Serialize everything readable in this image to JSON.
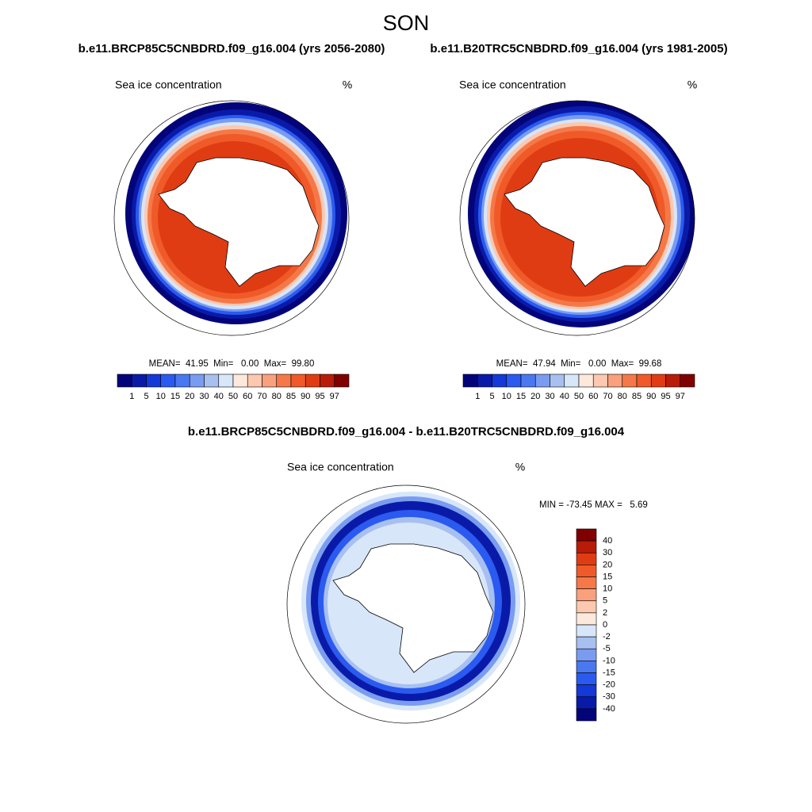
{
  "title": "SON",
  "panels": [
    {
      "case": "b.e11.BRCP85C5CNBDRD.f09_g16.004 (yrs 2056-2080)",
      "variable": "Sea ice concentration",
      "units": "%",
      "stats": "MEAN=  41.95  Min=   0.00  Max=  99.80"
    },
    {
      "case": "b.e11.B20TRC5CNBDRD.f09_g16.004 (yrs 1981-2005)",
      "variable": "Sea ice concentration",
      "units": "%",
      "stats": "MEAN=  47.94  Min=   0.00  Max=  99.68"
    }
  ],
  "colorbar": {
    "labels": [
      1,
      5,
      10,
      15,
      20,
      30,
      40,
      50,
      60,
      70,
      80,
      85,
      90,
      95,
      97
    ],
    "colors": [
      "#04047a",
      "#0a1aa8",
      "#1538d8",
      "#2a5af0",
      "#4a78f0",
      "#7a9cf0",
      "#a8c0f0",
      "#d8e6fa",
      "#fde8dc",
      "#fcc8b0",
      "#f9a07e",
      "#f57848",
      "#f05a28",
      "#e03c14",
      "#b81c08",
      "#800000"
    ]
  },
  "difference": {
    "title": "b.e11.BRCP85C5CNBDRD.f09_g16.004 - b.e11.B20TRC5CNBDRD.f09_g16.004",
    "variable": "Sea ice concentration",
    "units": "%",
    "stats": "MIN = -73.45 MAX =   5.69",
    "colorbar": {
      "labels": [
        40,
        30,
        20,
        15,
        10,
        5,
        2,
        0,
        -2,
        -5,
        -10,
        -15,
        -20,
        -30,
        -40
      ],
      "colors": [
        "#800000",
        "#b81c08",
        "#e03c14",
        "#f05a28",
        "#f57848",
        "#f9a07e",
        "#fcc8b0",
        "#fde8dc",
        "#d8e6fa",
        "#a8c0f0",
        "#7a9cf0",
        "#4a78f0",
        "#2a5af0",
        "#1538d8",
        "#0a1aa8",
        "#04047a"
      ]
    }
  }
}
